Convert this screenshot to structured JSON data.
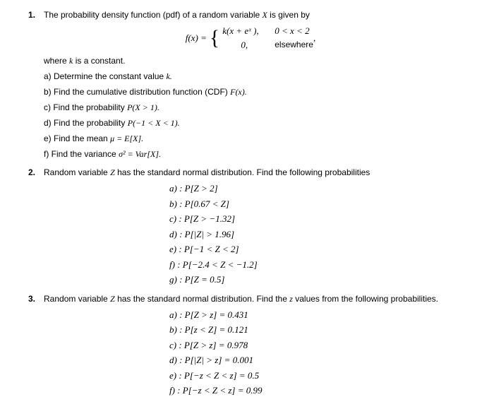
{
  "p1": {
    "num": "1.",
    "intro_a": "The probability density function (pdf) of a random variable ",
    "intro_var": "X",
    "intro_b": " is given by",
    "fx": "f(x) = ",
    "piece1_expr": "k(x + eˣ ),",
    "piece1_cond": "0 < x < 2",
    "piece2_expr": "0,",
    "piece2_cond": "elsewhere",
    "comma": " ,",
    "where": "where ",
    "where_var": "k",
    "where_b": " is a constant.",
    "a": "a) Determine the constant value ",
    "a_var": "k.",
    "b": "b) Find the cumulative distribution function (CDF) ",
    "b_var": "F(x).",
    "c": "c) Find the probability ",
    "c_var": "P(X > 1).",
    "d": "d) Find the probability ",
    "d_var": "P(−1 < X < 1).",
    "e": "e) Find the mean ",
    "e_var": "μ = E[X].",
    "f": "f) Find the variance ",
    "f_var": "σ² = Var[X]."
  },
  "p2": {
    "num": "2.",
    "intro_a": "Random variable ",
    "intro_var": "Z",
    "intro_b": " has the standard normal distribution. Find the following probabilities",
    "a": "a)  :  P[Z > 2]",
    "b": "b)  :  P[0.67 < Z]",
    "c": "c)  :  P[Z > −1.32]",
    "d": "d)  :  P[|Z| > 1.96]",
    "e": "e)  :  P[−1 < Z < 2]",
    "f": "f)  :  P[−2.4 < Z < −1.2]",
    "g": "g)  :  P[Z = 0.5]"
  },
  "p3": {
    "num": "3.",
    "intro_a": "Random variable ",
    "intro_var1": "Z",
    "intro_b": " has the standard normal distribution. Find the ",
    "intro_var2": "z",
    "intro_c": " values from the following probabilities.",
    "a": "a)  :  P[Z > z] = 0.431",
    "b": "b)  :  P[z < Z] = 0.121",
    "c": "c)  :  P[Z > z] = 0.978",
    "d": "d)  :  P[|Z| > z] = 0.001",
    "e": "e)  :  P[−z < Z < z] = 0.5",
    "f": "f)  :  P[−z < Z < z] = 0.99"
  }
}
